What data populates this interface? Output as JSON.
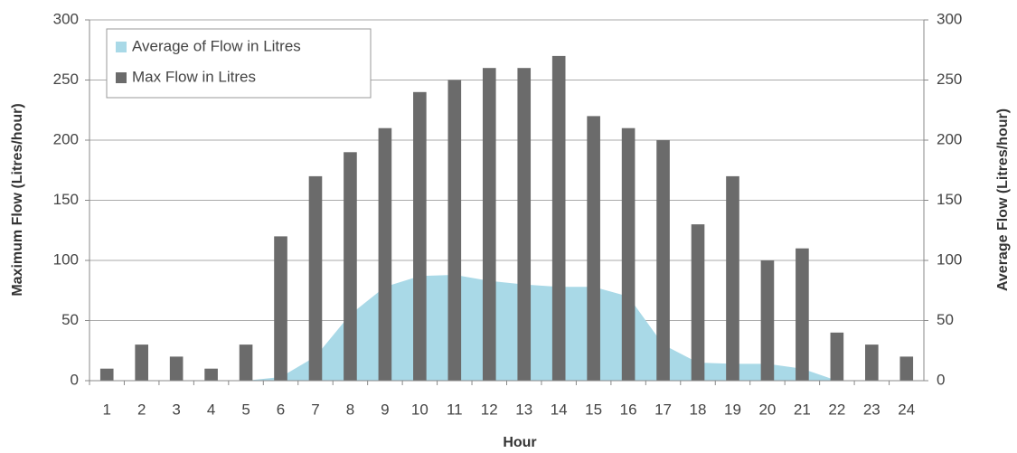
{
  "chart_data": {
    "type": "combo",
    "x_label": "Hour",
    "y_label": "Maximum Flow (Litres/hour)",
    "y2_label": "Average Flow (Litres/hour)",
    "categories": [
      "1",
      "2",
      "3",
      "4",
      "5",
      "6",
      "7",
      "8",
      "9",
      "10",
      "11",
      "12",
      "13",
      "14",
      "15",
      "16",
      "17",
      "18",
      "19",
      "20",
      "21",
      "22",
      "23",
      "24"
    ],
    "series": [
      {
        "name": "Average of Flow in Litres",
        "type": "area",
        "axis": "y2",
        "color": "#a9d9e7",
        "values": [
          0,
          0,
          0,
          0,
          0,
          3,
          20,
          55,
          78,
          87,
          88,
          83,
          80,
          78,
          78,
          70,
          30,
          15,
          14,
          14,
          10,
          0,
          0,
          0
        ]
      },
      {
        "name": "Max Flow in Litres",
        "type": "bar",
        "color": "#6b6b6b",
        "values": [
          10,
          30,
          20,
          10,
          30,
          120,
          170,
          190,
          210,
          240,
          250,
          260,
          260,
          270,
          220,
          210,
          200,
          130,
          170,
          100,
          110,
          40,
          30,
          20
        ]
      }
    ],
    "ylim": [
      0,
      300
    ],
    "yticks": [
      0,
      50,
      100,
      150,
      200,
      250,
      300
    ],
    "y2lim": [
      0,
      300
    ],
    "y2ticks": [
      0,
      50,
      100,
      150,
      200,
      250,
      300
    ],
    "grid": true,
    "legend": "top-left"
  }
}
